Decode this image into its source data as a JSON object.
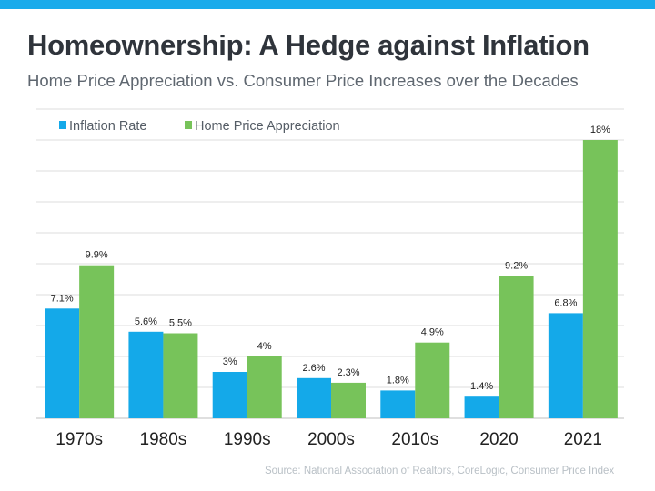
{
  "title": "Homeownership: A Hedge against Inflation",
  "subtitle": "Home Price Appreciation vs. Consumer Price Increases over the Decades",
  "source": "Source: National Association of Realtors, CoreLogic, Consumer Price Index",
  "chart_data": {
    "type": "bar",
    "categories": [
      "1970s",
      "1980s",
      "1990s",
      "2000s",
      "2010s",
      "2020",
      "2021"
    ],
    "series": [
      {
        "name": "Inflation Rate",
        "color": "#14a9e9",
        "values": [
          7.1,
          5.6,
          3,
          2.6,
          1.8,
          1.4,
          6.8
        ],
        "labels": [
          "7.1%",
          "5.6%",
          "3%",
          "2.6%",
          "1.8%",
          "1.4%",
          "6.8%"
        ]
      },
      {
        "name": "Home Price Appreciation",
        "color": "#77c35a",
        "values": [
          9.9,
          5.5,
          4,
          2.3,
          4.9,
          9.2,
          18
        ],
        "labels": [
          "9.9%",
          "5.5%",
          "4%",
          "2.3%",
          "4.9%",
          "9.2%",
          "18%"
        ]
      }
    ],
    "ylim": [
      0,
      20
    ],
    "grid_step": 2,
    "grid": true,
    "legend": "top-left"
  }
}
